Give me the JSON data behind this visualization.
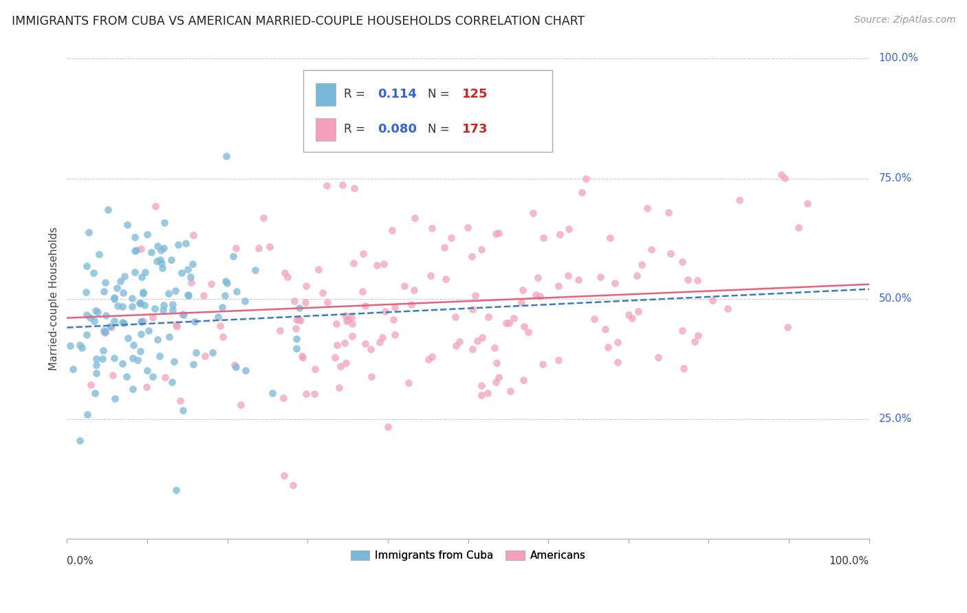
{
  "title": "IMMIGRANTS FROM CUBA VS AMERICAN MARRIED-COUPLE HOUSEHOLDS CORRELATION CHART",
  "source": "Source: ZipAtlas.com",
  "ylabel": "Married-couple Households",
  "series1_label": "Immigrants from Cuba",
  "series2_label": "Americans",
  "series1_R": "0.114",
  "series1_N": "125",
  "series2_R": "0.080",
  "series2_N": "173",
  "series1_color": "#7ab8d9",
  "series2_color": "#f4a0bb",
  "series1_trend_color": "#3a7abf",
  "series2_trend_color": "#e8607a",
  "background_color": "#ffffff",
  "grid_color": "#cccccc",
  "title_color": "#222222",
  "axis_label_color": "#444444",
  "right_label_color": "#3366cc",
  "seed": 12,
  "series1_n": 125,
  "series2_n": 173,
  "xlim": [
    0.0,
    1.0
  ],
  "ylim": [
    0.0,
    1.0
  ]
}
